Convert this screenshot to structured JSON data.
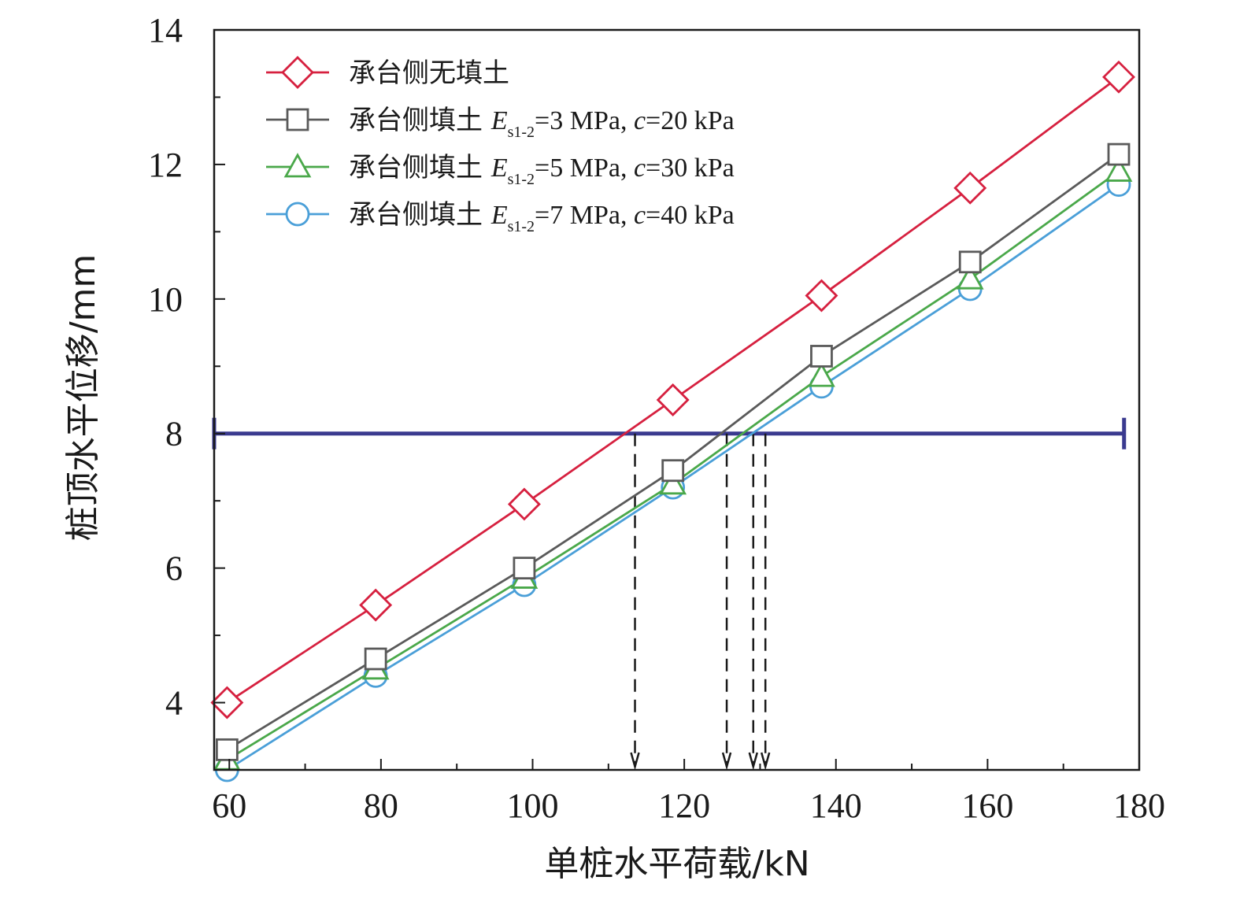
{
  "chart_data": {
    "type": "line",
    "xlabel": "单桩水平荷载/kN",
    "ylabel": "桩顶水平位移/mm",
    "xlim": [
      58,
      180
    ],
    "ylim": [
      3,
      14
    ],
    "x_ticks": [
      60,
      80,
      100,
      120,
      140,
      160,
      180
    ],
    "y_ticks": [
      4,
      6,
      8,
      10,
      12,
      14
    ],
    "grid": false,
    "legend_position": "top-left",
    "x": [
      59.7,
      79.3,
      98.9,
      118.5,
      138.1,
      157.7,
      177.3
    ],
    "series": [
      {
        "name": "承台侧无填土",
        "marker": "diamond",
        "color": "#d6203f",
        "values": [
          4.0,
          5.45,
          6.95,
          8.5,
          10.05,
          11.65,
          13.3
        ],
        "legend": {
          "prefix": "承台侧无填土"
        }
      },
      {
        "name": "承台侧填土 Es1-2=3 MPa, c=20 kPa",
        "marker": "square",
        "color": "#5a5a5a",
        "values": [
          3.3,
          4.65,
          6.0,
          7.45,
          9.15,
          10.55,
          12.15
        ],
        "legend": {
          "prefix": "承台侧填土 ",
          "E": "E",
          "sub": "s1-2",
          "mid": "=3 MPa, ",
          "c": "c",
          "suffix": "=20 kPa"
        }
      },
      {
        "name": "承台侧填土 Es1-2=5 MPa, c=30 kPa",
        "marker": "triangle",
        "color": "#4aa84a",
        "values": [
          3.15,
          4.5,
          5.85,
          7.25,
          8.85,
          10.3,
          11.9
        ],
        "legend": {
          "prefix": "承台侧填土 ",
          "E": "E",
          "sub": "s1-2",
          "mid": "=5 MPa, ",
          "c": "c",
          "suffix": "=30 kPa"
        }
      },
      {
        "name": "承台侧填土 Es1-2=7 MPa, c=40 kPa",
        "marker": "circle",
        "color": "#4a9fd8",
        "values": [
          3.0,
          4.4,
          5.75,
          7.2,
          8.7,
          10.15,
          11.7
        ],
        "legend": {
          "prefix": "承台侧填土 ",
          "E": "E",
          "sub": "s1-2",
          "mid": "=7 MPa, ",
          "c": "c",
          "suffix": "=40 kPa"
        }
      }
    ],
    "reference_line": {
      "y": 8,
      "x_start": 58,
      "x_end": 178,
      "color": "#3a3a8f"
    },
    "intersections_x": [
      113.5,
      125.6,
      129.1,
      130.7
    ]
  }
}
